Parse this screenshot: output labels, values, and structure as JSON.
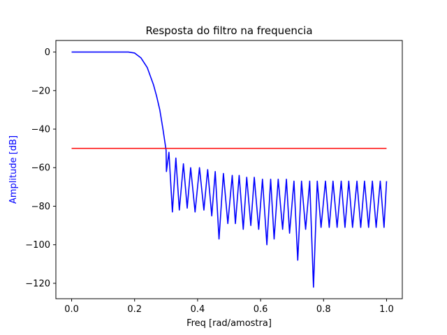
{
  "chart_data": {
    "type": "line",
    "title": "Resposta do filtro na frequencia",
    "xlabel": "Freq [rad/amostra]",
    "ylabel": "Amplitude [dB]",
    "xlim": [
      -0.05,
      1.05
    ],
    "ylim": [
      -128,
      6
    ],
    "xticks": [
      0.0,
      0.2,
      0.4,
      0.6,
      0.8,
      1.0
    ],
    "xtick_labels": [
      "0.0",
      "0.2",
      "0.4",
      "0.6",
      "0.8",
      "1.0"
    ],
    "yticks": [
      0,
      -20,
      -40,
      -60,
      -80,
      -100,
      -120
    ],
    "ytick_labels": [
      "0",
      "−20",
      "−40",
      "−60",
      "−80",
      "−100",
      "−120"
    ],
    "grid": false,
    "series": [
      {
        "color": "#0000ff",
        "x": [
          0.0,
          0.1,
          0.18,
          0.2,
          0.22,
          0.24,
          0.26,
          0.27,
          0.28,
          0.29,
          0.3,
          0.301,
          0.309,
          0.32,
          0.331,
          0.342,
          0.355,
          0.367,
          0.378,
          0.392,
          0.406,
          0.42,
          0.432,
          0.445,
          0.456,
          0.468,
          0.482,
          0.496,
          0.51,
          0.52,
          0.532,
          0.545,
          0.556,
          0.569,
          0.58,
          0.594,
          0.606,
          0.62,
          0.632,
          0.643,
          0.656,
          0.67,
          0.682,
          0.692,
          0.706,
          0.718,
          0.73,
          0.743,
          0.756,
          0.768,
          0.78,
          0.792,
          0.806,
          0.818,
          0.83,
          0.843,
          0.856,
          0.868,
          0.88,
          0.892,
          0.906,
          0.918,
          0.93,
          0.943,
          0.955,
          0.967,
          0.98,
          0.992,
          1.0
        ],
        "y": [
          0,
          0,
          0,
          -0.5,
          -3,
          -8,
          -17,
          -23,
          -30,
          -40,
          -51,
          -62,
          -52,
          -83,
          -55,
          -82,
          -58,
          -81,
          -60,
          -83,
          -60,
          -82,
          -61,
          -85,
          -62,
          -97,
          -63,
          -89,
          -64,
          -89,
          -64,
          -92,
          -65,
          -90,
          -65,
          -92,
          -66,
          -100,
          -66,
          -97,
          -66,
          -92,
          -66,
          -94,
          -67,
          -108,
          -67,
          -92,
          -67,
          -122,
          -67,
          -91,
          -67,
          -91,
          -67,
          -91,
          -67,
          -91,
          -67,
          -91,
          -67,
          -91,
          -67,
          -91,
          -67,
          -91,
          -67,
          -91,
          -67
        ]
      },
      {
        "color": "#ff0000",
        "x": [
          0.0,
          1.0
        ],
        "y": [
          -50,
          -50
        ]
      }
    ]
  }
}
